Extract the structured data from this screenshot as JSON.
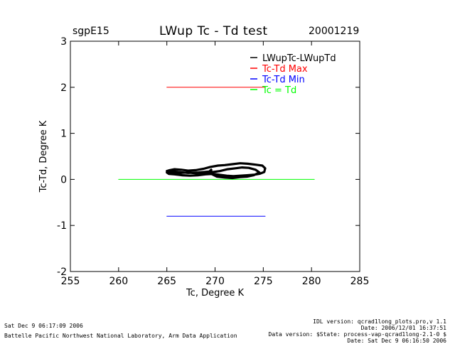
{
  "header": {
    "site": "sgpE15",
    "title": "LWup Tc - Td test",
    "date": "20001219"
  },
  "footer": {
    "left_line1": "Sat Dec  9 06:17:09 2006",
    "left_line2": "Battelle Pacific Northwest National Laboratory, Arm Data Application",
    "right_lines": [
      "IDL version: qcrad1long_plots.pro,v 1.1",
      "Date: 2006/12/01 16:37:51",
      "Data version: $State: process-vap-qcrad1long-2.1-0 $",
      "Date: Sat Dec  9 06:16:50 2006"
    ]
  },
  "chart_data": {
    "type": "line",
    "title": "LWup Tc - Td test",
    "xlabel": "Tc, Degree K",
    "ylabel": "Tc-Td, Degree K",
    "xlim": [
      255,
      285
    ],
    "ylim": [
      -2,
      3
    ],
    "xticks": [
      255,
      260,
      265,
      270,
      275,
      280,
      285
    ],
    "yticks": [
      -2,
      -1,
      0,
      1,
      2,
      3
    ],
    "grid": false,
    "legend_position": "top-right",
    "series": [
      {
        "name": "LWupTc-LWupTd",
        "color": "#000000",
        "x": [
          265.0,
          265.3,
          265.8,
          266.5,
          267.2,
          268.0,
          268.8,
          269.5,
          270.3,
          271.0,
          271.8,
          272.6,
          273.4,
          274.2,
          274.9,
          275.2,
          275.1,
          274.6,
          274.0,
          273.3,
          272.6,
          271.9,
          271.2,
          270.5,
          269.8,
          269.0,
          268.2,
          267.4,
          266.6,
          265.8,
          265.2,
          265.0,
          265.4,
          266.2,
          267.2,
          268.3,
          269.4,
          269.6,
          269.6,
          270.2,
          271.0,
          271.8,
          272.6,
          273.3,
          274.0,
          274.6,
          274.2,
          273.5,
          272.8,
          272.1,
          271.3,
          270.5,
          269.8,
          269.0,
          268.1,
          267.2,
          266.3,
          265.5,
          265.1
        ],
        "y": [
          0.18,
          0.2,
          0.22,
          0.21,
          0.19,
          0.2,
          0.23,
          0.27,
          0.3,
          0.31,
          0.33,
          0.35,
          0.34,
          0.32,
          0.3,
          0.24,
          0.16,
          0.12,
          0.1,
          0.09,
          0.08,
          0.07,
          0.08,
          0.1,
          0.12,
          0.11,
          0.09,
          0.08,
          0.09,
          0.11,
          0.12,
          0.15,
          0.18,
          0.16,
          0.14,
          0.15,
          0.17,
          0.21,
          0.12,
          0.06,
          0.04,
          0.03,
          0.05,
          0.06,
          0.09,
          0.15,
          0.21,
          0.25,
          0.26,
          0.24,
          0.22,
          0.18,
          0.16,
          0.14,
          0.13,
          0.15,
          0.14,
          0.13,
          0.17
        ]
      },
      {
        "name": "Tc-Td Max",
        "color": "#ff0000",
        "x": [
          265,
          275.2
        ],
        "y": [
          2,
          2
        ]
      },
      {
        "name": "Tc-Td Min",
        "color": "#0000ff",
        "x": [
          265,
          275.2
        ],
        "y": [
          -0.8,
          -0.8
        ]
      },
      {
        "name": "Tc = Td",
        "color": "#00ff00",
        "x": [
          260,
          280.3
        ],
        "y": [
          0,
          0
        ]
      }
    ]
  }
}
